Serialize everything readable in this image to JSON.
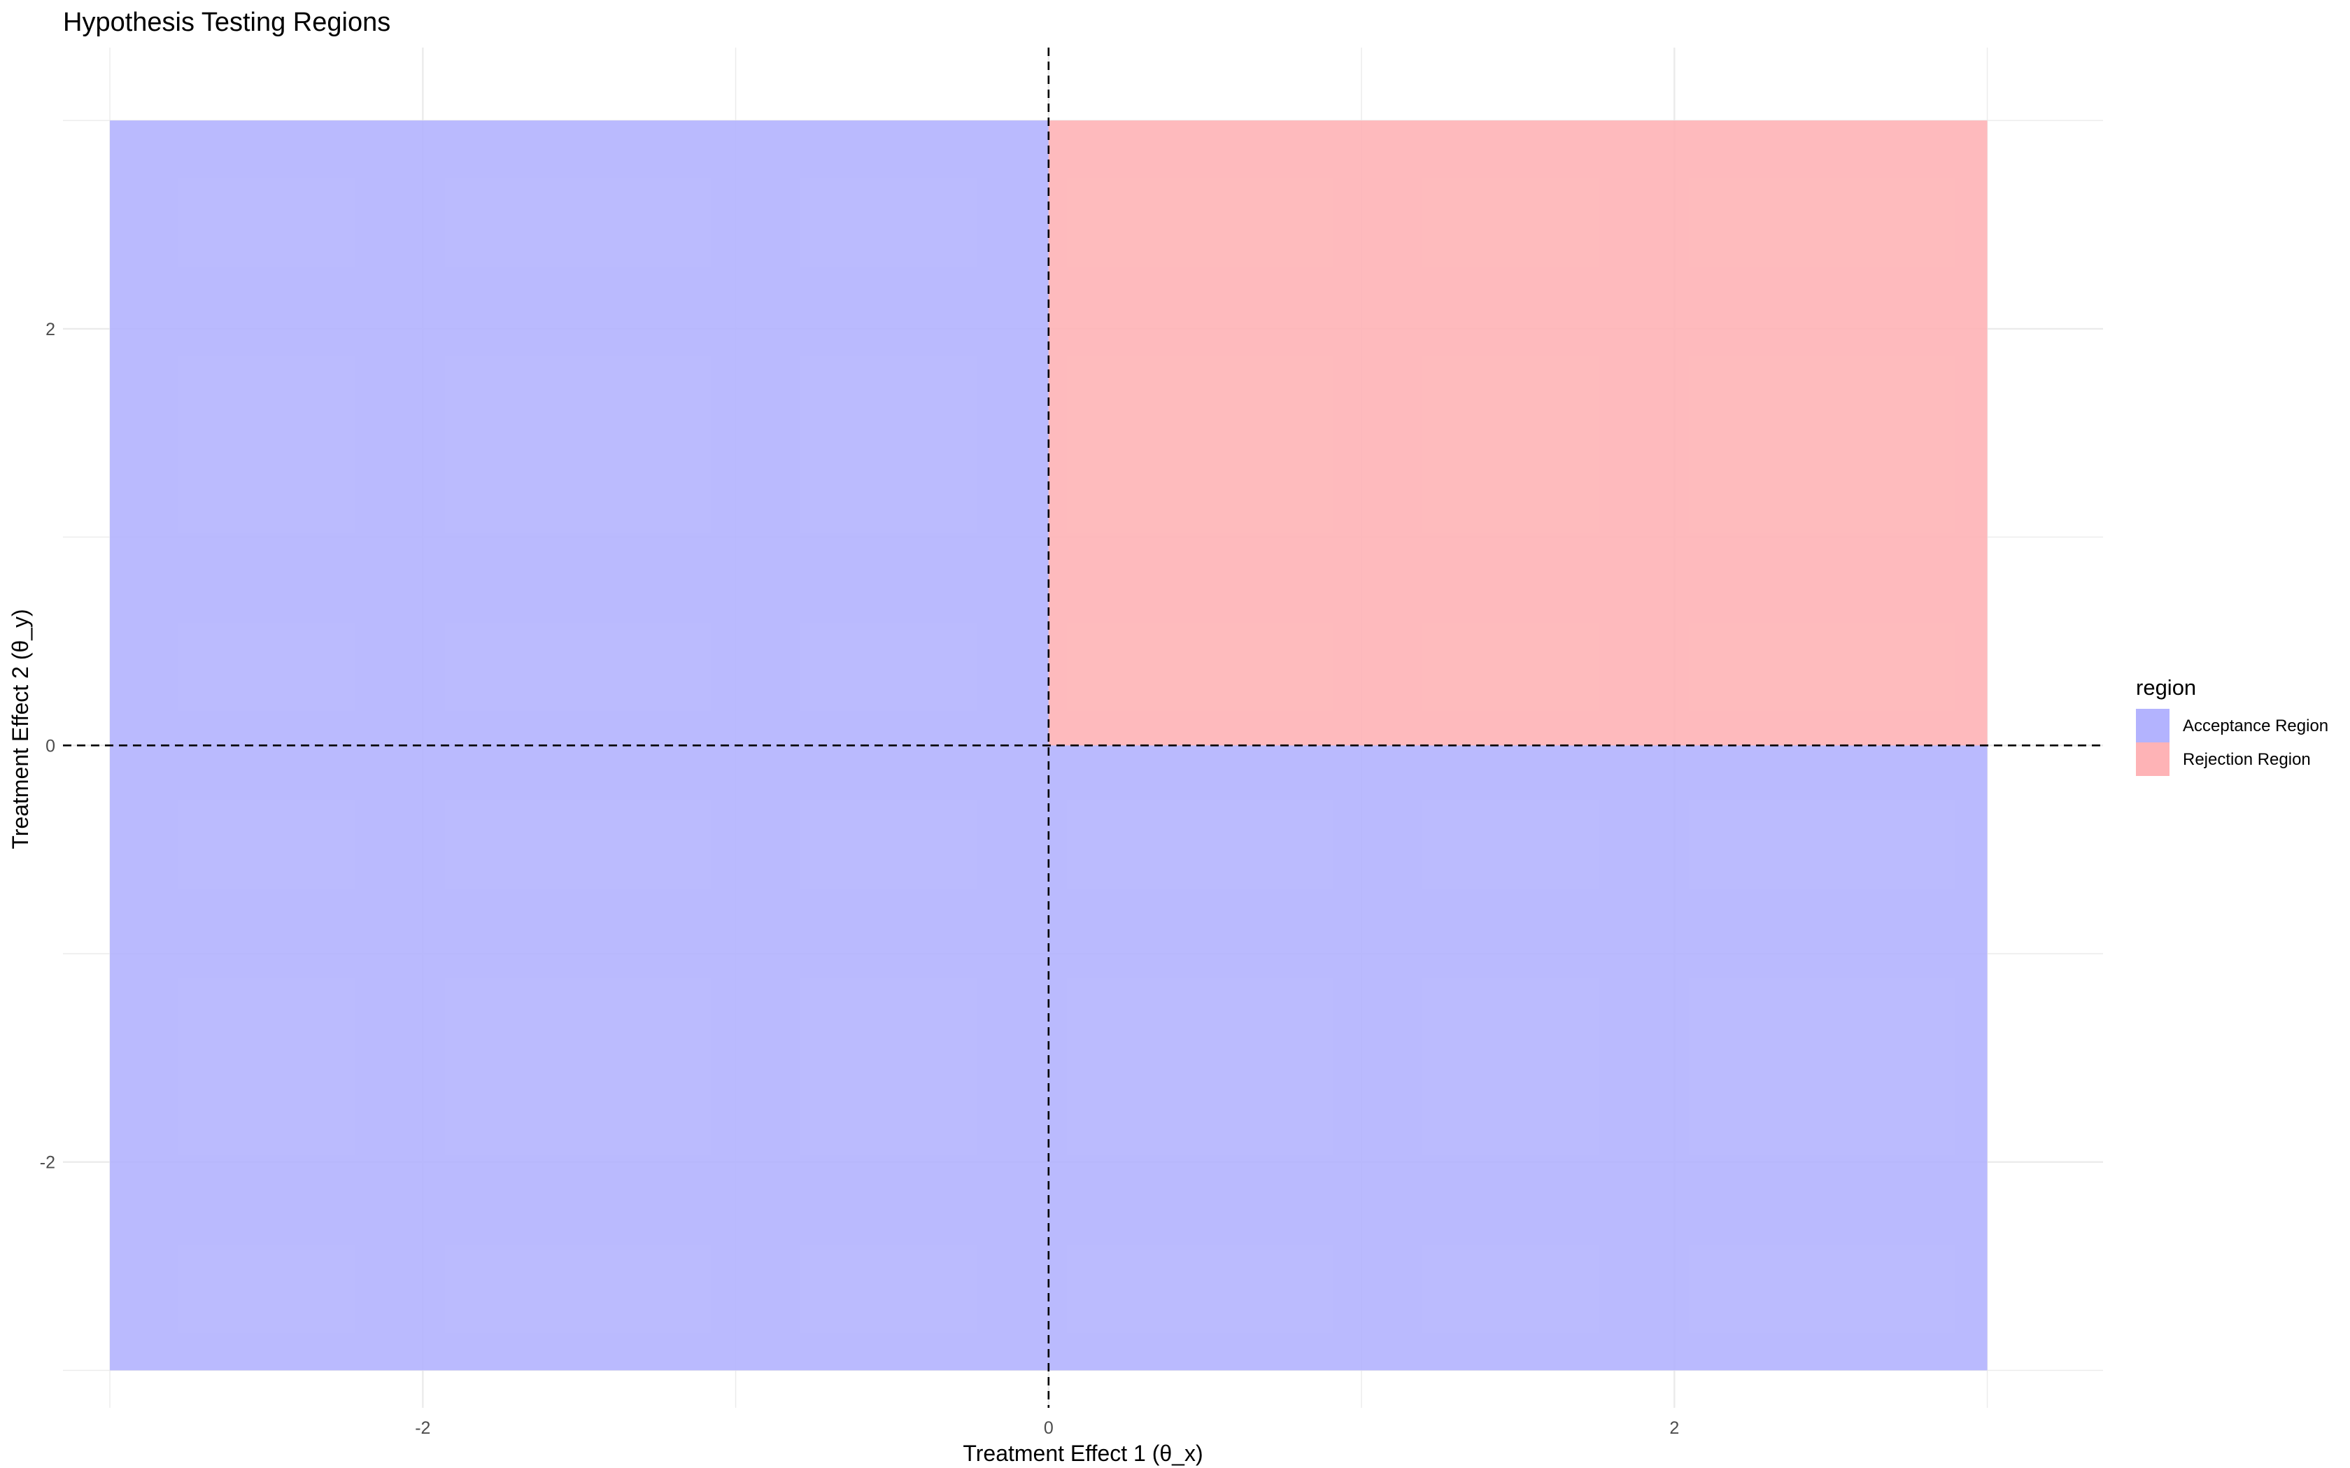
{
  "chart_data": {
    "type": "heatmap",
    "title": "Hypothesis Testing Regions",
    "xlabel": "Treatment Effect 1 (θ_x)",
    "ylabel": "Treatment Effect 2 (θ_y)",
    "xlim": [
      -3.15,
      3.37
    ],
    "ylim": [
      -3.18,
      3.35
    ],
    "x_ticks": [
      -2,
      0,
      2
    ],
    "y_ticks": [
      -2,
      0,
      2
    ],
    "x_tick_labels": [
      "-2",
      "0",
      "2"
    ],
    "y_tick_labels": [
      "-2",
      "0",
      "2"
    ],
    "grid": true,
    "reference_lines": {
      "x": 0,
      "y": 0,
      "style": "dashed"
    },
    "regions": [
      {
        "name": "Acceptance Region",
        "xmin": -3,
        "xmax": 0,
        "ymin": -3,
        "ymax": 3
      },
      {
        "name": "Acceptance Region",
        "xmin": 0,
        "xmax": 3,
        "ymin": -3,
        "ymax": 0
      },
      {
        "name": "Rejection Region",
        "xmin": 0,
        "xmax": 3,
        "ymin": 0,
        "ymax": 3
      }
    ],
    "legend": {
      "title": "region",
      "position": "right",
      "entries": [
        {
          "label": "Acceptance Region",
          "color": "#b3b3fe"
        },
        {
          "label": "Rejection Region",
          "color": "#feb3b6"
        }
      ]
    }
  }
}
